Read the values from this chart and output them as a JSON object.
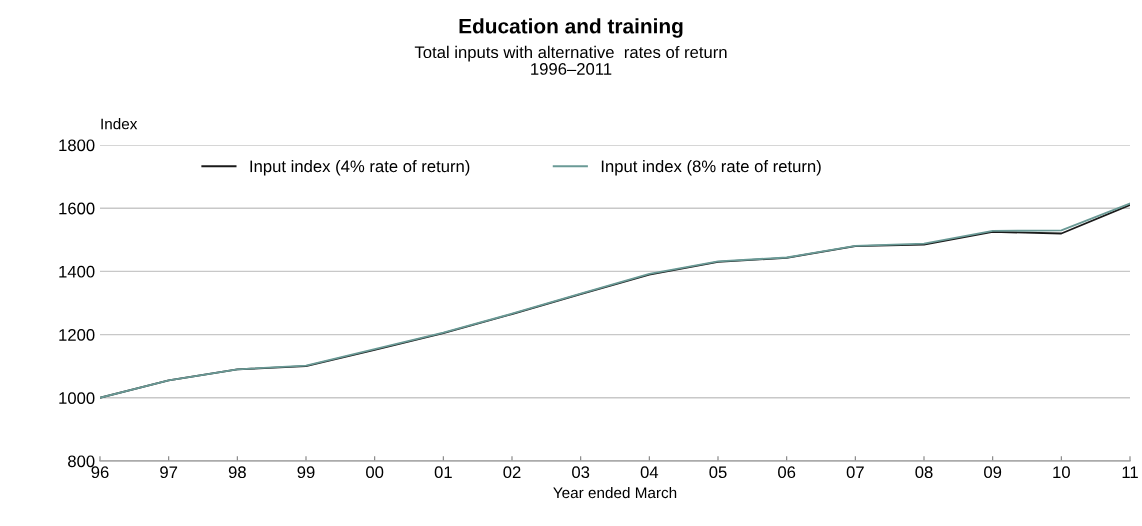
{
  "chart_data": {
    "type": "line",
    "title": "Education and training",
    "subtitle": "Total inputs with alternative  rates of return\n1996–2011",
    "xlabel": "Year ended March",
    "ylabel": "Index",
    "categories": [
      "96",
      "97",
      "98",
      "99",
      "00",
      "01",
      "02",
      "03",
      "04",
      "05",
      "06",
      "07",
      "08",
      "09",
      "10",
      "11"
    ],
    "series": [
      {
        "name": "Input index (4% rate of return)",
        "color": "#1a1a1a",
        "values": [
          1000,
          1055,
          1090,
          1100,
          1152,
          1205,
          1265,
          1328,
          1390,
          1430,
          1443,
          1480,
          1485,
          1525,
          1520,
          1610
        ]
      },
      {
        "name": "Input index (8% rate of return)",
        "color": "#6a9a96",
        "values": [
          1000,
          1055,
          1090,
          1102,
          1154,
          1206,
          1266,
          1330,
          1392,
          1432,
          1444,
          1481,
          1488,
          1528,
          1530,
          1615
        ]
      }
    ],
    "ylim": [
      800,
      1800
    ],
    "yticks": [
      800,
      1000,
      1200,
      1400,
      1600,
      1800
    ],
    "grid": "y",
    "legend": "top"
  }
}
